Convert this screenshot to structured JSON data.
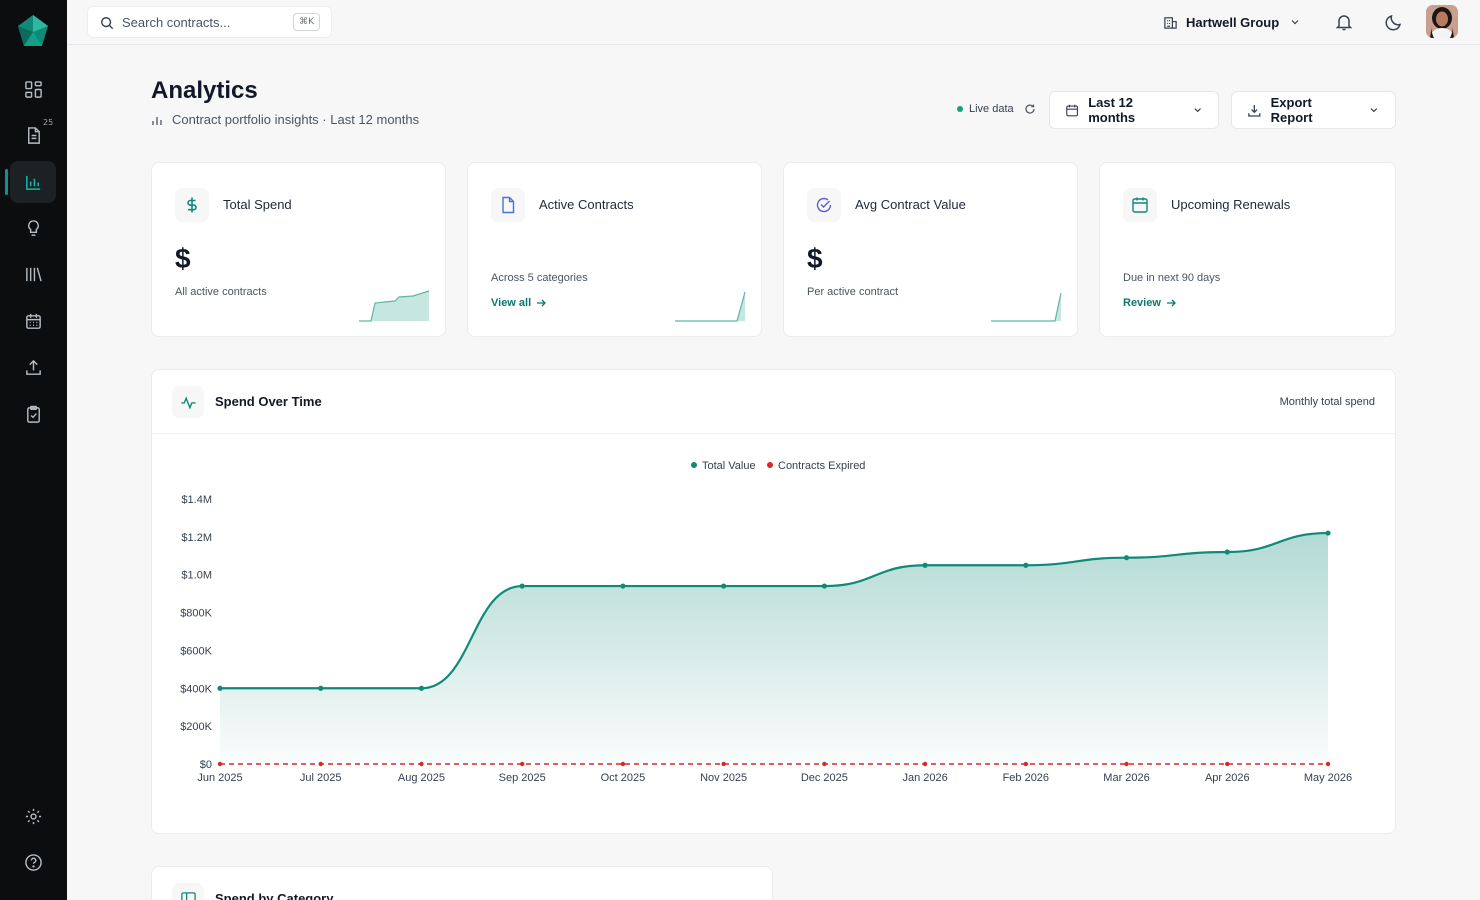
{
  "sidebar": {
    "items": [
      {
        "name": "dashboard",
        "icon": "grid-icon"
      },
      {
        "name": "contracts",
        "icon": "document-icon",
        "badge": "25"
      },
      {
        "name": "analytics",
        "icon": "bar-chart-icon",
        "active": true
      },
      {
        "name": "insights",
        "icon": "lightbulb-icon"
      },
      {
        "name": "library",
        "icon": "library-icon"
      },
      {
        "name": "calendar",
        "icon": "calendar-icon"
      },
      {
        "name": "upload",
        "icon": "upload-icon"
      },
      {
        "name": "tasks",
        "icon": "clipboard-icon"
      }
    ],
    "bottom": [
      {
        "name": "settings",
        "icon": "gear-icon"
      },
      {
        "name": "help",
        "icon": "help-circle-icon"
      }
    ]
  },
  "topbar": {
    "search_placeholder": "Search contracts...",
    "shortcut": "⌘K",
    "org_name": "Hartwell Group"
  },
  "header": {
    "title": "Analytics",
    "subtitle": "Contract portfolio insights · Last 12 months",
    "live_label": "Live data",
    "range_label": "Last 12 months",
    "export_label": "Export Report"
  },
  "cards": [
    {
      "title": "Total Spend",
      "value": "$",
      "note": "All active contracts",
      "icon": "dollar-icon"
    },
    {
      "title": "Active Contracts",
      "value": "",
      "note": "Across 5 categories",
      "link": "View all",
      "icon": "file-icon"
    },
    {
      "title": "Avg Contract Value",
      "value": "$",
      "note": "Per active contract",
      "icon": "check-circle-icon"
    },
    {
      "title": "Upcoming Renewals",
      "value": "",
      "note": "Due in next 90 days",
      "link": "Review",
      "icon": "calendar-icon"
    }
  ],
  "spend_panel": {
    "title": "Spend Over Time",
    "meta": "Monthly total spend"
  },
  "category_panel": {
    "title": "Spend by Category"
  },
  "chart_data": {
    "type": "area",
    "categories": [
      "Jun 2025",
      "Jul 2025",
      "Aug 2025",
      "Sep 2025",
      "Oct 2025",
      "Nov 2025",
      "Dec 2025",
      "Jan 2026",
      "Feb 2026",
      "Mar 2026",
      "Apr 2026",
      "May 2026"
    ],
    "series": [
      {
        "name": "Total Value",
        "color": "#0f8a78",
        "values": [
          400000,
          400000,
          400000,
          940000,
          940000,
          940000,
          940000,
          1050000,
          1050000,
          1090000,
          1120000,
          1220000
        ]
      },
      {
        "name": "Contracts Expired",
        "color": "#dc2626",
        "values": [
          0,
          0,
          0,
          0,
          0,
          0,
          0,
          0,
          0,
          0,
          0,
          0
        ]
      }
    ],
    "yticks": [
      "$0",
      "$200K",
      "$400K",
      "$600K",
      "$800K",
      "$1.0M",
      "$1.2M",
      "$1.4M"
    ],
    "ylim": [
      0,
      1400000
    ],
    "legend": "top-center"
  }
}
